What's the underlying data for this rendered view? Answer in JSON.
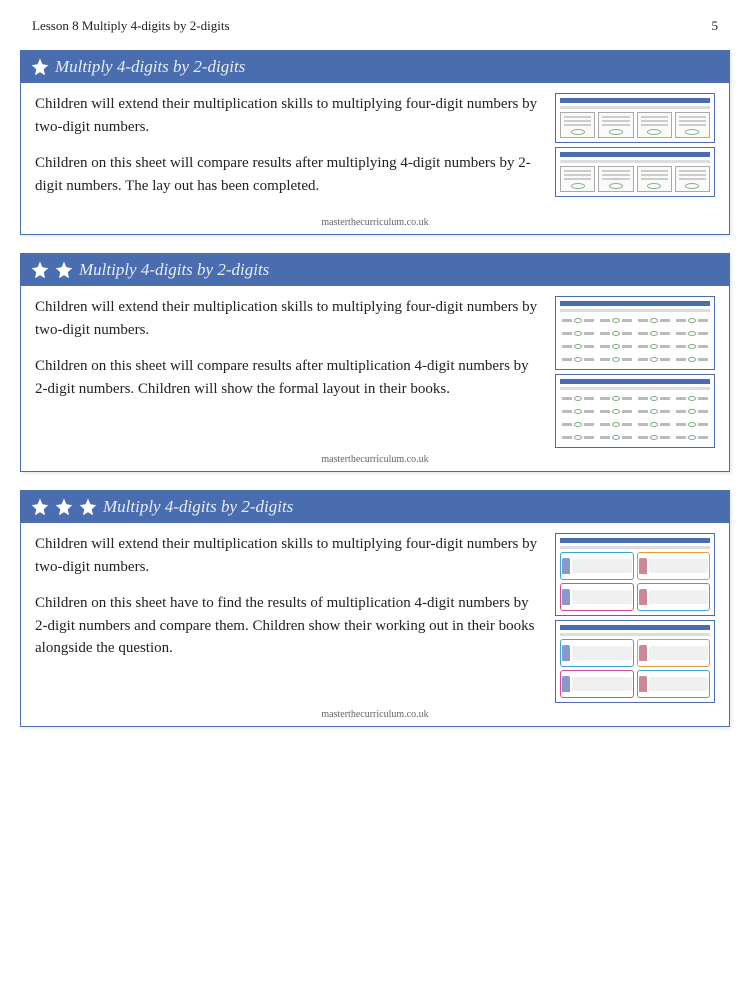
{
  "header": {
    "lesson_title": "Lesson 8 Multiply 4-digits by 2-digits",
    "page_number": "5"
  },
  "footer_link": "masterthecurriculum.co.uk",
  "colors": {
    "header_bg": "#4a6daf",
    "header_text": "#e8edf6",
    "border": "#4a6daf",
    "oval": "#7fb07f"
  },
  "cards": [
    {
      "stars": 1,
      "title": "Multiply 4-digits by 2-digits",
      "paragraphs": [
        "Children will extend their multiplication skills to multiplying four-digit numbers by two-digit numbers.",
        "Children on this sheet will compare results after multiplying 4-digit numbers by 2-digit numbers. The lay out has been completed."
      ],
      "thumb_style": "grid"
    },
    {
      "stars": 2,
      "title": "Multiply 4-digits by 2-digits",
      "paragraphs": [
        "Children will extend their multiplication skills to multiplying four-digit numbers by two-digit numbers.",
        "Children on this sheet will compare results after multiplication 4-digit numbers by 2-digit numbers. Children will show the formal layout in their books."
      ],
      "thumb_style": "rows"
    },
    {
      "stars": 3,
      "title": "Multiply 4-digits by 2-digits",
      "paragraphs": [
        "Children will extend their multiplication skills to multiplying four-digit numbers by two-digit numbers.",
        "Children on this sheet have to find the results of multiplication 4-digit numbers by 2-digit numbers and compare them. Children show their working out in their books alongside the question."
      ],
      "thumb_style": "people",
      "people_colors": [
        "#3da6d4",
        "#e69a3c",
        "#d94a9a",
        "#3da6d4"
      ]
    }
  ]
}
